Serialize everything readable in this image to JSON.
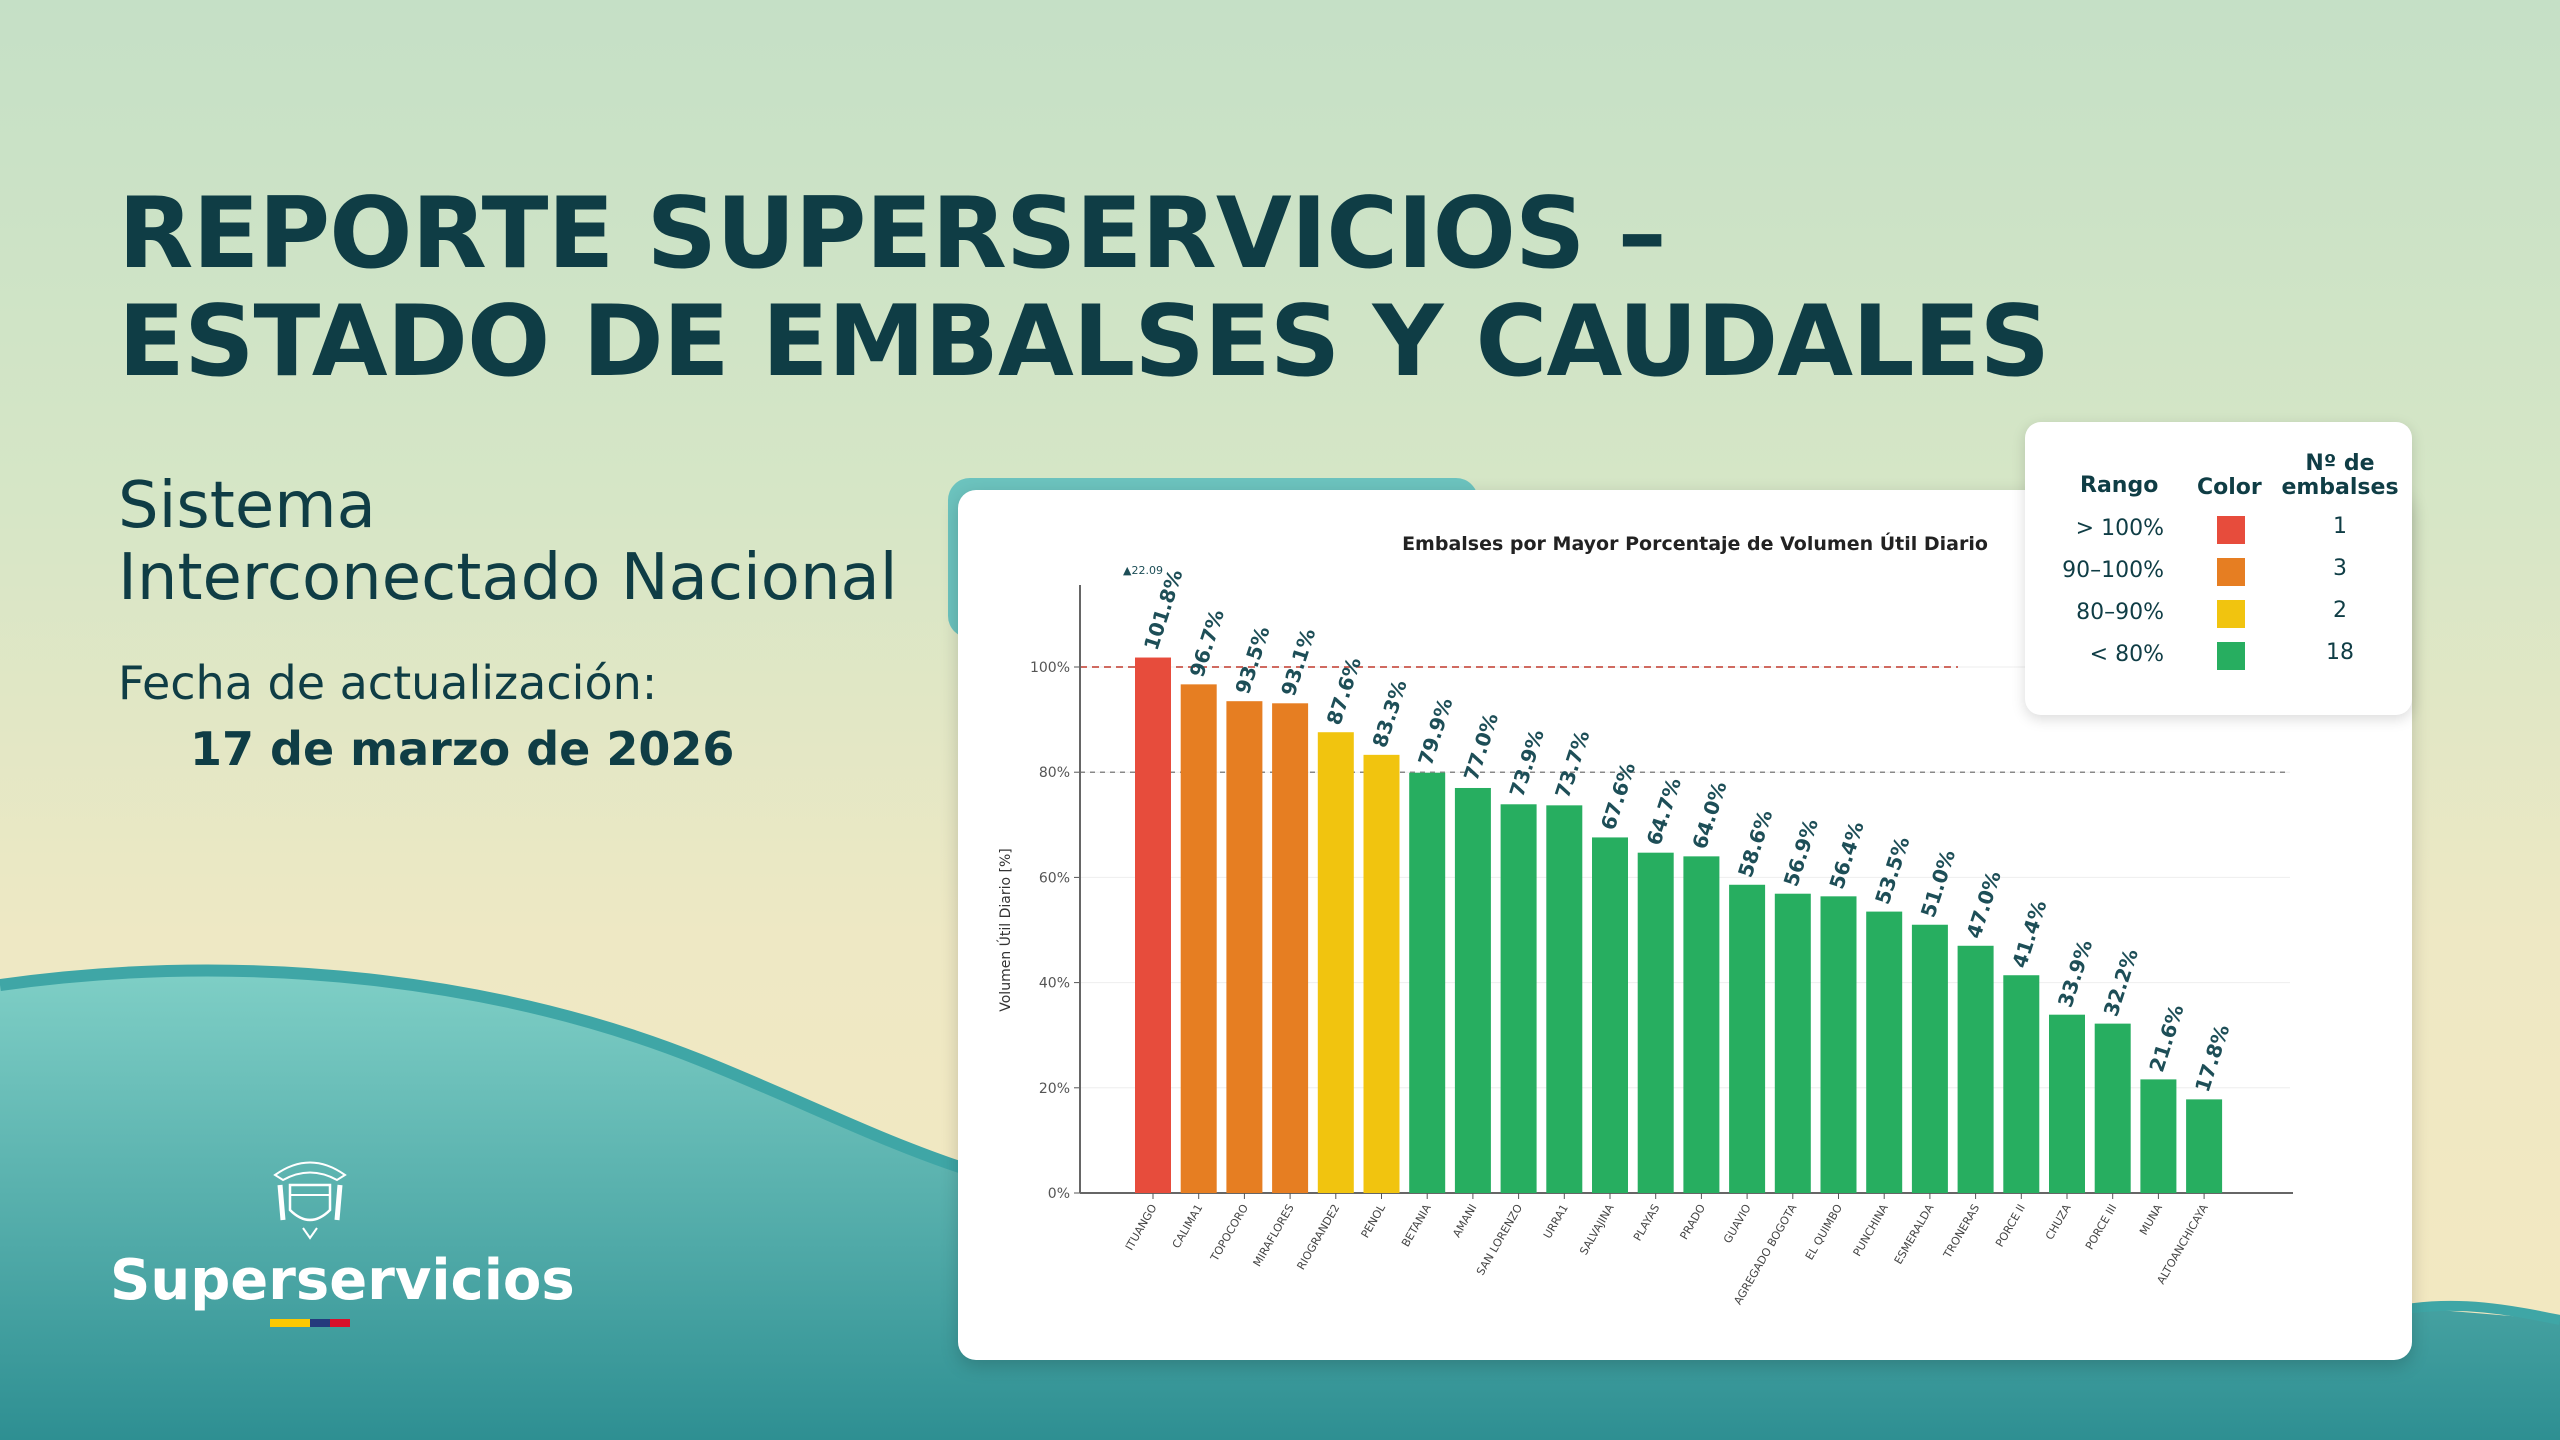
{
  "header": {
    "title_line1": "REPORTE SUPERSERVICIOS –",
    "title_line2": "ESTADO DE EMBALSES Y CAUDALES",
    "subtitle_line1": "Sistema",
    "subtitle_line2": "Interconectado Nacional",
    "date_label": "Fecha de actualización:",
    "date_value": "17 de marzo de 2026"
  },
  "logo": {
    "text": "Superservicios",
    "icon": "colombia-coat-of-arms-icon",
    "flag_colors": [
      "#fcc800",
      "#253a7c",
      "#d8102b"
    ]
  },
  "legend": {
    "headers": {
      "range": "Rango",
      "color": "Color",
      "count_line1": "Nº de",
      "count_line2": "embalses"
    },
    "rows": [
      {
        "range": "> 100%",
        "color": "#e74c3c",
        "count": "1"
      },
      {
        "range": "90–100%",
        "color": "#e67e22",
        "count": "3"
      },
      {
        "range": "80–90%",
        "color": "#f1c40f",
        "count": "2"
      },
      {
        "range": "< 80%",
        "color": "#27ae60",
        "count": "18"
      }
    ]
  },
  "chart_data": {
    "type": "bar",
    "title": "Embalses por Mayor Porcentaje de Volumen Útil Diario",
    "xlabel": "",
    "ylabel": "Volumen Útil Diario [%]",
    "ylim": [
      0,
      115
    ],
    "yticks": [
      "0%",
      "20%",
      "40%",
      "60%",
      "80%",
      "100%"
    ],
    "reference_lines": [
      {
        "y": 100,
        "color": "#c0392b",
        "style": "dashed"
      },
      {
        "y": 80,
        "color": "#888888",
        "style": "dashed"
      }
    ],
    "annotation": {
      "category": "ITUANGO",
      "text": "▲22.09"
    },
    "categories": [
      "ITUANGO",
      "CALIMA1",
      "TOPOCORO",
      "MIRAFLORES",
      "RIOGRANDE2",
      "PENOL",
      "BETANIA",
      "AMANI",
      "SAN LORENZO",
      "URRA1",
      "SALVAJINA",
      "PLAYAS",
      "PRADO",
      "GUAVIO",
      "AGREGADO BOGOTA",
      "EL QUIMBO",
      "PUNCHINA",
      "ESMERALDA",
      "TRONERAS",
      "PORCE II",
      "CHUZA",
      "PORCE III",
      "MUNA",
      "ALTOANCHICAYA"
    ],
    "values": [
      101.8,
      96.7,
      93.5,
      93.1,
      87.6,
      83.3,
      79.9,
      77.0,
      73.9,
      73.7,
      67.6,
      64.7,
      64.0,
      58.6,
      56.9,
      56.4,
      53.5,
      51.0,
      47.0,
      41.4,
      33.9,
      32.2,
      21.6,
      17.8
    ],
    "value_labels": [
      "101.8%",
      "96.7%",
      "93.5%",
      "93.1%",
      "87.6%",
      "83.3%",
      "79.9%",
      "77.0%",
      "73.9%",
      "73.7%",
      "67.6%",
      "64.7%",
      "64.0%",
      "58.6%",
      "56.9%",
      "56.4%",
      "53.5%",
      "51.0%",
      "47.0%",
      "41.4%",
      "33.9%",
      "32.2%",
      "21.6%",
      "17.8%"
    ],
    "colors": {
      "gt100": "#e74c3c",
      "90_100": "#e67e22",
      "80_90": "#f1c40f",
      "lt80": "#27ae60"
    },
    "grid": true
  }
}
